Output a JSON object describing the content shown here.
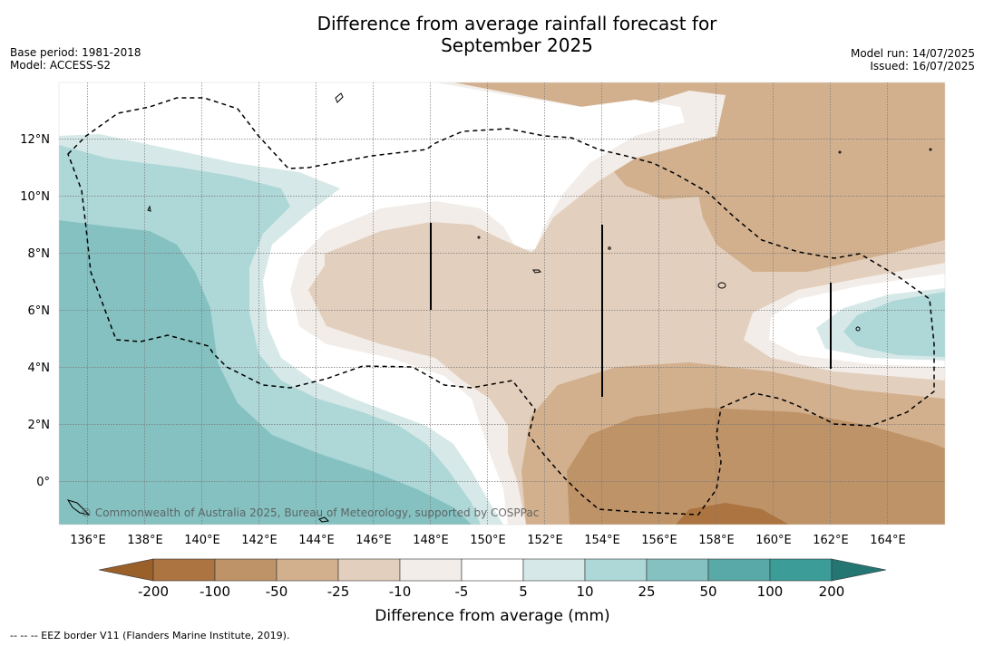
{
  "title": {
    "line1": "Difference from average rainfall forecast for",
    "line2": "September 2025"
  },
  "meta_left": {
    "base_period": "Base period: 1981-2018",
    "model": "Model: ACCESS-S2"
  },
  "meta_right": {
    "model_run": "Model run: 14/07/2025",
    "issued": "Issued: 16/07/2025"
  },
  "map": {
    "lon_range": [
      135,
      166
    ],
    "lat_range": [
      -1.5,
      14
    ],
    "lon_ticks": [
      136,
      138,
      140,
      142,
      144,
      146,
      148,
      150,
      152,
      154,
      156,
      158,
      160,
      162,
      164
    ],
    "lon_tick_labels": [
      "136°E",
      "138°E",
      "140°E",
      "142°E",
      "144°E",
      "146°E",
      "148°E",
      "150°E",
      "152°E",
      "154°E",
      "156°E",
      "158°E",
      "160°E",
      "162°E",
      "164°E"
    ],
    "lat_ticks": [
      0,
      2,
      4,
      6,
      8,
      10,
      12
    ],
    "lat_tick_labels": [
      "0°",
      "2°N",
      "4°N",
      "6°N",
      "8°N",
      "10°N",
      "12°N"
    ],
    "grid": true,
    "copyright": "© Commonwealth of Australia 2025, Bureau of Meteorology, supported by COSPPac"
  },
  "colorbar": {
    "tick_labels": [
      "-200",
      "-100",
      "-50",
      "-25",
      "-10",
      "-5",
      "5",
      "10",
      "25",
      "50",
      "100",
      "200"
    ],
    "colors": [
      "#99602a",
      "#ab7440",
      "#bf9368",
      "#d2b08e",
      "#e3cfbd",
      "#f2ede8",
      "#ffffff",
      "#d6e9e8",
      "#aed7d7",
      "#85c1c1",
      "#59a9a8",
      "#3b9c98",
      "#247673"
    ],
    "label": "Difference from average (mm)"
  },
  "footer": "-- -- -- EEZ border V11 (Flanders Marine Institute, 2019)."
}
